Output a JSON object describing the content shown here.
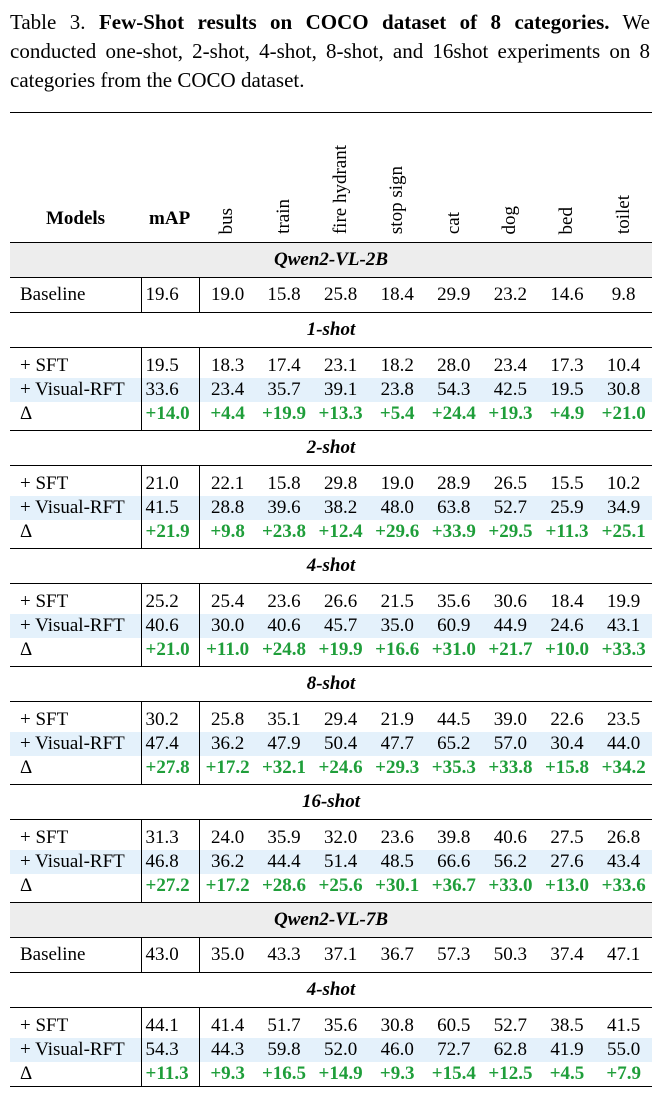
{
  "caption": {
    "label": "Table 3.",
    "title": "Few-Shot results on COCO dataset of 8 categories.",
    "text": "We conducted one-shot, 2-shot, 4-shot, 8-shot, and 16shot experiments on 8 categories from the COCO dataset."
  },
  "table": {
    "headers": {
      "models": "Models",
      "map": "mAP",
      "categories": [
        "bus",
        "train",
        "fire hydrant",
        "stop sign",
        "cat",
        "dog",
        "bed",
        "toilet"
      ]
    },
    "sections": [
      {
        "title": "Qwen2-VL-2B",
        "style": "gray",
        "rows": [
          {
            "model": "Baseline",
            "map": "19.6",
            "values": [
              "19.0",
              "15.8",
              "25.8",
              "18.4",
              "29.9",
              "23.2",
              "14.6",
              "9.8"
            ],
            "kind": "baseline"
          }
        ]
      },
      {
        "title": "1-shot",
        "style": "plain",
        "rows": [
          {
            "model": "+ SFT",
            "map": "19.5",
            "values": [
              "18.3",
              "17.4",
              "23.1",
              "18.2",
              "28.0",
              "23.4",
              "17.3",
              "10.4"
            ],
            "kind": "sft"
          },
          {
            "model": "+ Visual-RFT",
            "map": "33.6",
            "values": [
              "23.4",
              "35.7",
              "39.1",
              "23.8",
              "54.3",
              "42.5",
              "19.5",
              "30.8"
            ],
            "kind": "rft"
          },
          {
            "model": "Δ",
            "map": "+14.0",
            "values": [
              "+4.4",
              "+19.9",
              "+13.3",
              "+5.4",
              "+24.4",
              "+19.3",
              "+4.9",
              "+21.0"
            ],
            "kind": "delta"
          }
        ]
      },
      {
        "title": "2-shot",
        "style": "plain",
        "rows": [
          {
            "model": "+ SFT",
            "map": "21.0",
            "values": [
              "22.1",
              "15.8",
              "29.8",
              "19.0",
              "28.9",
              "26.5",
              "15.5",
              "10.2"
            ],
            "kind": "sft"
          },
          {
            "model": "+ Visual-RFT",
            "map": "41.5",
            "values": [
              "28.8",
              "39.6",
              "38.2",
              "48.0",
              "63.8",
              "52.7",
              "25.9",
              "34.9"
            ],
            "kind": "rft"
          },
          {
            "model": "Δ",
            "map": "+21.9",
            "values": [
              "+9.8",
              "+23.8",
              "+12.4",
              "+29.6",
              "+33.9",
              "+29.5",
              "+11.3",
              "+25.1"
            ],
            "kind": "delta"
          }
        ]
      },
      {
        "title": "4-shot",
        "style": "plain",
        "rows": [
          {
            "model": "+ SFT",
            "map": "25.2",
            "values": [
              "25.4",
              "23.6",
              "26.6",
              "21.5",
              "35.6",
              "30.6",
              "18.4",
              "19.9"
            ],
            "kind": "sft"
          },
          {
            "model": "+ Visual-RFT",
            "map": "40.6",
            "values": [
              "30.0",
              "40.6",
              "45.7",
              "35.0",
              "60.9",
              "44.9",
              "24.6",
              "43.1"
            ],
            "kind": "rft"
          },
          {
            "model": "Δ",
            "map": "+21.0",
            "values": [
              "+11.0",
              "+24.8",
              "+19.9",
              "+16.6",
              "+31.0",
              "+21.7",
              "+10.0",
              "+33.3"
            ],
            "kind": "delta"
          }
        ]
      },
      {
        "title": "8-shot",
        "style": "plain",
        "rows": [
          {
            "model": "+ SFT",
            "map": "30.2",
            "values": [
              "25.8",
              "35.1",
              "29.4",
              "21.9",
              "44.5",
              "39.0",
              "22.6",
              "23.5"
            ],
            "kind": "sft"
          },
          {
            "model": "+ Visual-RFT",
            "map": "47.4",
            "values": [
              "36.2",
              "47.9",
              "50.4",
              "47.7",
              "65.2",
              "57.0",
              "30.4",
              "44.0"
            ],
            "kind": "rft"
          },
          {
            "model": "Δ",
            "map": "+27.8",
            "values": [
              "+17.2",
              "+32.1",
              "+24.6",
              "+29.3",
              "+35.3",
              "+33.8",
              "+15.8",
              "+34.2"
            ],
            "kind": "delta"
          }
        ]
      },
      {
        "title": "16-shot",
        "style": "plain",
        "rows": [
          {
            "model": "+ SFT",
            "map": "31.3",
            "values": [
              "24.0",
              "35.9",
              "32.0",
              "23.6",
              "39.8",
              "40.6",
              "27.5",
              "26.8"
            ],
            "kind": "sft"
          },
          {
            "model": "+ Visual-RFT",
            "map": "46.8",
            "values": [
              "36.2",
              "44.4",
              "51.4",
              "48.5",
              "66.6",
              "56.2",
              "27.6",
              "43.4"
            ],
            "kind": "rft"
          },
          {
            "model": "Δ",
            "map": "+27.2",
            "values": [
              "+17.2",
              "+28.6",
              "+25.6",
              "+30.1",
              "+36.7",
              "+33.0",
              "+13.0",
              "+33.6"
            ],
            "kind": "delta"
          }
        ]
      },
      {
        "title": "Qwen2-VL-7B",
        "style": "gray",
        "rows": [
          {
            "model": "Baseline",
            "map": "43.0",
            "values": [
              "35.0",
              "43.3",
              "37.1",
              "36.7",
              "57.3",
              "50.3",
              "37.4",
              "47.1"
            ],
            "kind": "baseline"
          }
        ]
      },
      {
        "title": "4-shot",
        "style": "plain",
        "rows": [
          {
            "model": "+ SFT",
            "map": "44.1",
            "values": [
              "41.4",
              "51.7",
              "35.6",
              "30.8",
              "60.5",
              "52.7",
              "38.5",
              "41.5"
            ],
            "kind": "sft"
          },
          {
            "model": "+ Visual-RFT",
            "map": "54.3",
            "values": [
              "44.3",
              "59.8",
              "52.0",
              "46.0",
              "72.7",
              "62.8",
              "41.9",
              "55.0"
            ],
            "kind": "rft"
          },
          {
            "model": "Δ",
            "map": "+11.3",
            "values": [
              "+9.3",
              "+16.5",
              "+14.9",
              "+9.3",
              "+15.4",
              "+12.5",
              "+4.5",
              "+7.9"
            ],
            "kind": "delta"
          }
        ]
      }
    ],
    "colors": {
      "delta": "#1f9e3a",
      "highlight": "#e4f1fb",
      "section_gray": "#ededed"
    }
  }
}
